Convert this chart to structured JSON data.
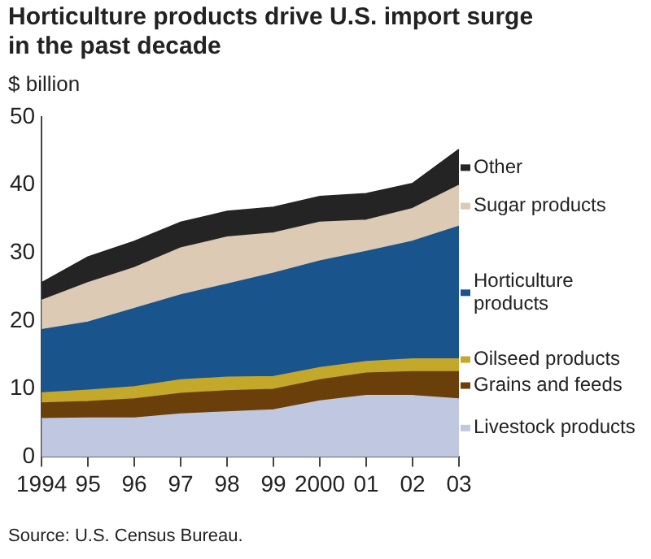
{
  "chart_data": {
    "type": "area",
    "title": "Horticulture products drive U.S. import surge in the past decade",
    "ylabel": "$ billion",
    "annotations": [
      "Source: U.S. Census Bureau."
    ],
    "categories": [
      "1994",
      "95",
      "96",
      "97",
      "98",
      "99",
      "2000",
      "01",
      "02",
      "03"
    ],
    "stacked": true,
    "grid": false,
    "legend": "right",
    "ylim": [
      0,
      50
    ],
    "yticks": [
      0,
      10,
      20,
      30,
      40,
      50
    ],
    "series": [
      {
        "name": "Livestock products",
        "color": "#c0c7e0",
        "values": [
          5.6,
          5.7,
          5.7,
          6.3,
          6.6,
          6.9,
          8.2,
          9.0,
          9.0,
          8.5
        ]
      },
      {
        "name": "Grains and feeds",
        "color": "#6b3f0a",
        "values": [
          2.3,
          2.4,
          2.8,
          3.0,
          3.1,
          3.0,
          3.1,
          3.3,
          3.5,
          4.0
        ]
      },
      {
        "name": "Oilseed products",
        "color": "#c4a82a",
        "values": [
          1.5,
          1.7,
          1.8,
          2.0,
          2.0,
          1.9,
          1.8,
          1.7,
          1.9,
          1.9
        ]
      },
      {
        "name": "Horticulture products",
        "color": "#1a548c",
        "values": [
          9.3,
          10.0,
          11.5,
          12.5,
          13.7,
          15.2,
          15.7,
          16.2,
          17.3,
          19.5
        ]
      },
      {
        "name": "Sugar products",
        "color": "#dccab5",
        "values": [
          4.3,
          5.8,
          6.0,
          6.9,
          6.9,
          5.9,
          5.7,
          4.6,
          4.8,
          6.0
        ]
      },
      {
        "name": "Other",
        "color": "#242424",
        "values": [
          2.6,
          3.8,
          3.9,
          3.8,
          3.8,
          3.8,
          3.8,
          3.9,
          3.7,
          5.3
        ]
      }
    ]
  }
}
